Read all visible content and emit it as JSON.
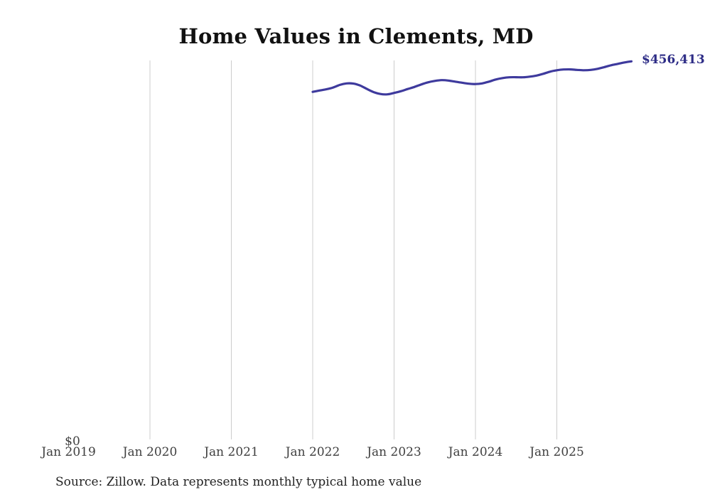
{
  "title": "Home Values in Clements, MD",
  "end_label": "$456,413",
  "y_zero_label": "$0",
  "source": "Source: Zillow. Data represents monthly typical home value",
  "colors": {
    "line": "#3e3a9d",
    "end_label": "#2d2c86",
    "gridline": "#cccccc",
    "tick_text": "#404040",
    "title_text": "#111111",
    "source_text": "#222222"
  },
  "chart_data": {
    "type": "line",
    "title": "Home Values in Clements, MD",
    "xlabel": "",
    "ylabel": "",
    "ylim": [
      0,
      457500
    ],
    "grid": "vertical-yearly",
    "legend": "none",
    "x_axis_start_month": "2019-01",
    "x_axis_end_month": "2025-12",
    "x_ticks": [
      {
        "label": "Jan 2019",
        "month": "2019-01",
        "gridline": false
      },
      {
        "label": "Jan 2020",
        "month": "2020-01",
        "gridline": true
      },
      {
        "label": "Jan 2021",
        "month": "2021-01",
        "gridline": true
      },
      {
        "label": "Jan 2022",
        "month": "2022-01",
        "gridline": true
      },
      {
        "label": "Jan 2023",
        "month": "2023-01",
        "gridline": true
      },
      {
        "label": "Jan 2024",
        "month": "2024-01",
        "gridline": true
      },
      {
        "label": "Jan 2025",
        "month": "2025-01",
        "gridline": true
      }
    ],
    "end_value": 456413,
    "series": [
      {
        "name": "Monthly typical home value",
        "start_month": "2022-01",
        "months": [
          "2022-01",
          "2022-02",
          "2022-03",
          "2022-04",
          "2022-05",
          "2022-06",
          "2022-07",
          "2022-08",
          "2022-09",
          "2022-10",
          "2022-11",
          "2022-12",
          "2023-01",
          "2023-02",
          "2023-03",
          "2023-04",
          "2023-05",
          "2023-06",
          "2023-07",
          "2023-08",
          "2023-09",
          "2023-10",
          "2023-11",
          "2023-12",
          "2024-01",
          "2024-02",
          "2024-03",
          "2024-04",
          "2024-05",
          "2024-06",
          "2024-07",
          "2024-08",
          "2024-09",
          "2024-10",
          "2024-11",
          "2024-12",
          "2025-01",
          "2025-02",
          "2025-03",
          "2025-04",
          "2025-05",
          "2025-06",
          "2025-07",
          "2025-08",
          "2025-09",
          "2025-10",
          "2025-11",
          "2025-12"
        ],
        "values": [
          419700,
          421300,
          422800,
          424900,
          428100,
          429900,
          429600,
          427300,
          423200,
          419400,
          417100,
          416700,
          418400,
          420500,
          423100,
          425600,
          428600,
          431200,
          432900,
          433800,
          433300,
          432000,
          430700,
          429500,
          429100,
          429900,
          432000,
          434600,
          436300,
          437200,
          437300,
          437200,
          438000,
          439300,
          441400,
          444000,
          445700,
          446600,
          446700,
          446100,
          445700,
          446100,
          447400,
          449500,
          451700,
          453400,
          455100,
          456413
        ]
      }
    ]
  }
}
